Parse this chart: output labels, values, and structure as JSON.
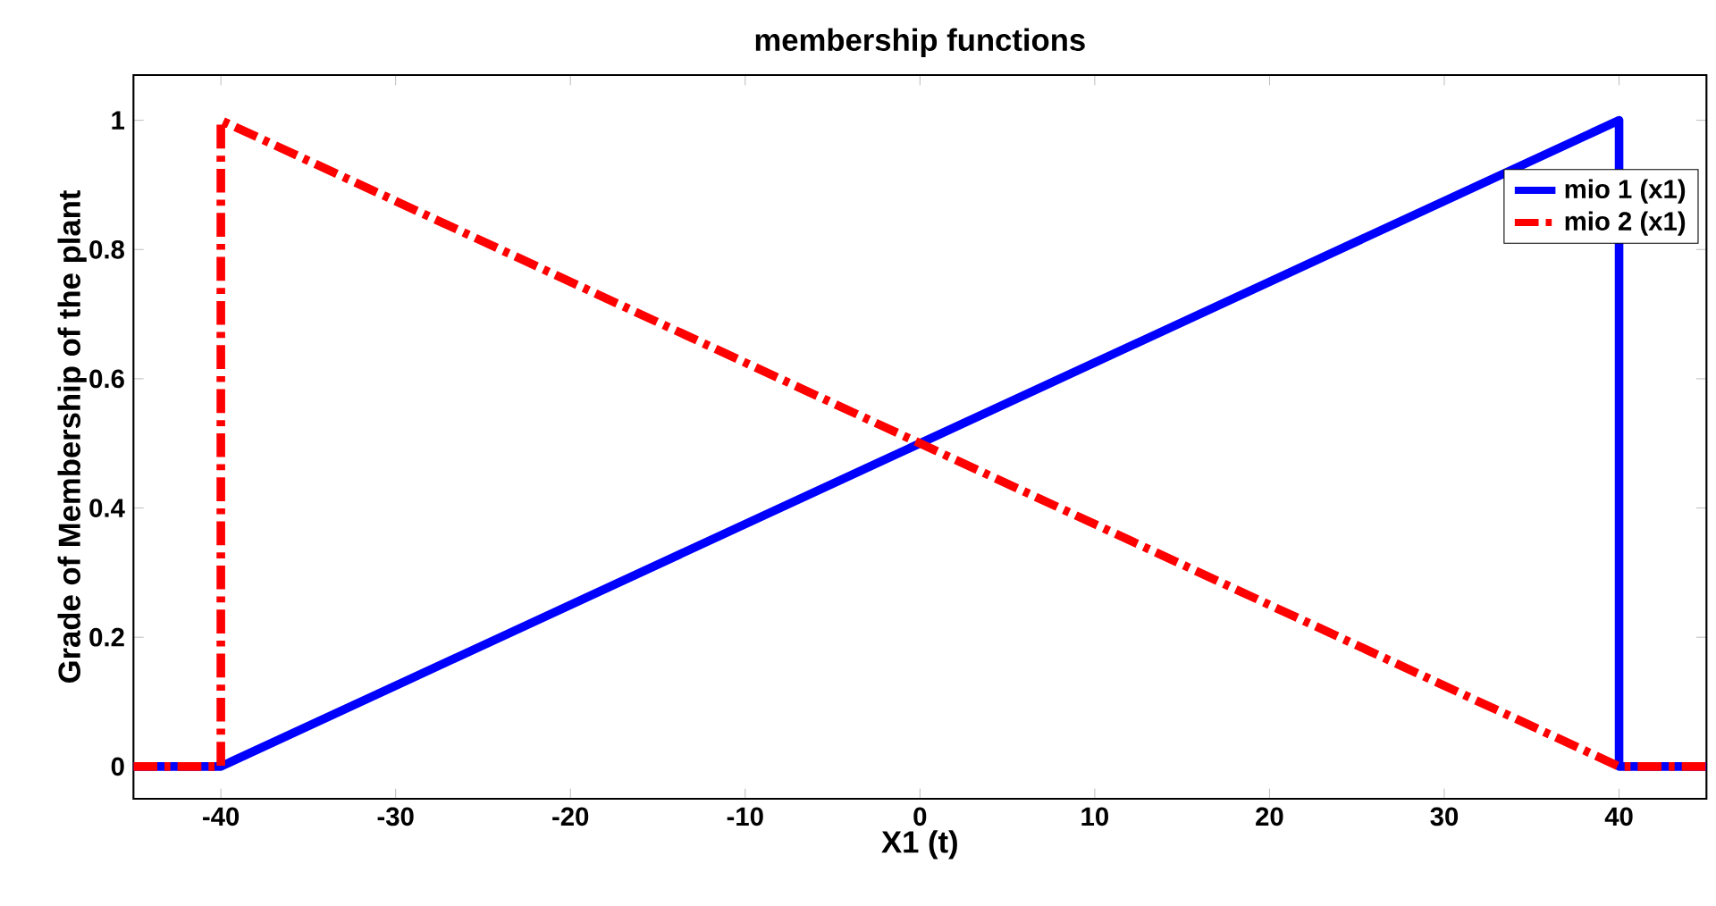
{
  "chart_data": {
    "type": "line",
    "title": "membership functions",
    "xlabel": "X1 (t)",
    "ylabel": "Grade of Membership of the plant",
    "xlim": [
      -45,
      45
    ],
    "ylim": [
      -0.05,
      1.07
    ],
    "xticks": [
      -40,
      -30,
      -20,
      -10,
      0,
      10,
      20,
      30,
      40
    ],
    "yticks": [
      0,
      0.2,
      0.4,
      0.6,
      0.8,
      1
    ],
    "legend": "top right",
    "marker": "none",
    "series": [
      {
        "name": "mio 1 (x1)",
        "color": "#0000ff",
        "line_style": "solid",
        "x": [
          -45,
          -40,
          40,
          40,
          45
        ],
        "values": [
          0,
          0,
          1,
          0,
          0
        ]
      },
      {
        "name": "mio 2 (x1)",
        "color": "#ff0000",
        "line_style": "dashed",
        "x": [
          -45,
          -40,
          -40,
          40,
          45
        ],
        "values": [
          0,
          0,
          1,
          0,
          0
        ]
      }
    ]
  }
}
